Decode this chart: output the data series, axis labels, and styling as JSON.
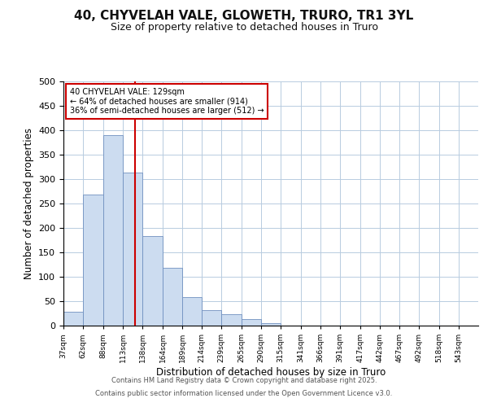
{
  "title": "40, CHYVELAH VALE, GLOWETH, TRURO, TR1 3YL",
  "subtitle": "Size of property relative to detached houses in Truro",
  "xlabel": "Distribution of detached houses by size in Truro",
  "ylabel": "Number of detached properties",
  "bar_edges": [
    37,
    62,
    88,
    113,
    138,
    164,
    189,
    214,
    239,
    265,
    290,
    315,
    341,
    366,
    391,
    417,
    442,
    467,
    492,
    518,
    543,
    568
  ],
  "bar_heights": [
    28,
    268,
    390,
    314,
    183,
    118,
    58,
    32,
    24,
    13,
    5,
    0,
    0,
    0,
    0,
    0,
    0,
    0,
    0,
    0,
    0
  ],
  "bar_color": "#ccdcf0",
  "bar_edgecolor": "#7090c0",
  "bar_linewidth": 0.6,
  "red_line_x": 129,
  "red_line_color": "#cc0000",
  "ylim": [
    0,
    500
  ],
  "yticks": [
    0,
    50,
    100,
    150,
    200,
    250,
    300,
    350,
    400,
    450,
    500
  ],
  "xtick_labels": [
    "37sqm",
    "62sqm",
    "88sqm",
    "113sqm",
    "138sqm",
    "164sqm",
    "189sqm",
    "214sqm",
    "239sqm",
    "265sqm",
    "290sqm",
    "315sqm",
    "341sqm",
    "366sqm",
    "391sqm",
    "417sqm",
    "442sqm",
    "467sqm",
    "492sqm",
    "518sqm",
    "543sqm"
  ],
  "annotation_lines": [
    "40 CHYVELAH VALE: 129sqm",
    "← 64% of detached houses are smaller (914)",
    "36% of semi-detached houses are larger (512) →"
  ],
  "annotation_box_color": "#ffffff",
  "annotation_box_edgecolor": "#cc0000",
  "footnote1": "Contains HM Land Registry data © Crown copyright and database right 2025.",
  "footnote2": "Contains public sector information licensed under the Open Government Licence v3.0.",
  "background_color": "#ffffff",
  "grid_color": "#b8cce0",
  "title_fontsize": 11,
  "subtitle_fontsize": 9
}
